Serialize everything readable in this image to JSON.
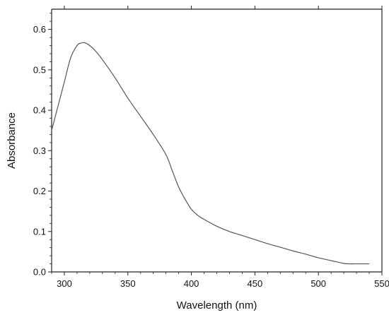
{
  "chart_data": {
    "type": "line",
    "title": "",
    "xlabel": "Wavelength (nm)",
    "ylabel": "Absorbance",
    "xlim": [
      290,
      550
    ],
    "ylim": [
      0.0,
      0.65
    ],
    "xticks": [
      300,
      350,
      400,
      450,
      500,
      550
    ],
    "xtick_labels": [
      "300",
      "350",
      "400",
      "450",
      "500",
      "550"
    ],
    "yticks": [
      0.0,
      0.1,
      0.2,
      0.3,
      0.4,
      0.5,
      0.6
    ],
    "ytick_labels": [
      "0.0",
      "0.1",
      "0.2",
      "0.3",
      "0.4",
      "0.5",
      "0.6"
    ],
    "grid": false,
    "legend": "none",
    "series": [
      {
        "color": "#555555",
        "x": [
          290,
          295,
          300,
          305,
          310,
          313,
          316,
          320,
          325,
          330,
          340,
          350,
          360,
          370,
          380,
          385,
          390,
          395,
          400,
          405,
          410,
          420,
          430,
          440,
          450,
          460,
          470,
          480,
          490,
          500,
          510,
          520,
          525,
          530,
          540
        ],
        "y": [
          0.35,
          0.41,
          0.47,
          0.53,
          0.56,
          0.566,
          0.567,
          0.56,
          0.545,
          0.525,
          0.48,
          0.43,
          0.385,
          0.34,
          0.29,
          0.25,
          0.21,
          0.18,
          0.155,
          0.14,
          0.13,
          0.113,
          0.1,
          0.09,
          0.08,
          0.07,
          0.061,
          0.052,
          0.044,
          0.035,
          0.028,
          0.021,
          0.02,
          0.02,
          0.02
        ]
      }
    ]
  }
}
